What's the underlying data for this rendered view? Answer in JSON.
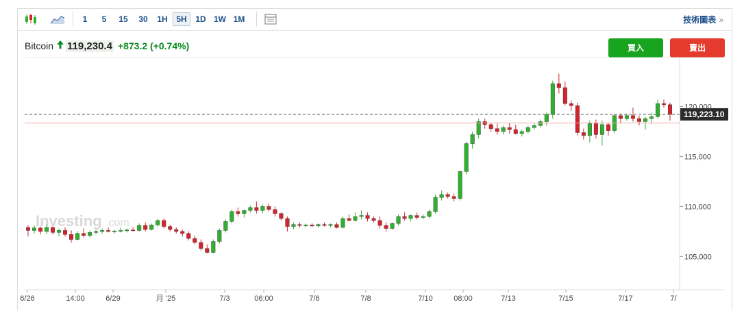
{
  "toolbar": {
    "timeframes": [
      "1",
      "5",
      "15",
      "30",
      "1H",
      "5H",
      "1D",
      "1W",
      "1M"
    ],
    "active_timeframe": "5H",
    "chart_type_icons": [
      "candlestick-chart-icon",
      "area-chart-icon"
    ],
    "table_icon": "table-icon",
    "tech_chart_label": "技術圖表",
    "tech_chart_arrow": "»"
  },
  "quote": {
    "name": "Bitcoin",
    "direction_icon": "up-arrow-icon",
    "price": "119,230.4",
    "change": "+873.2",
    "change_pct": "(+0.74%)",
    "up_color": "#0a8a1f"
  },
  "actions": {
    "buy_label": "買入",
    "sell_label": "賣出",
    "buy_color": "#19a41f",
    "sell_color": "#e53a2e"
  },
  "watermark": {
    "brand": "Investing",
    "suffix": ".com"
  },
  "chart_data": {
    "type": "candlestick",
    "ylim": [
      101800,
      124500
    ],
    "yticks": [
      {
        "value": 105000,
        "label": "105,000"
      },
      {
        "value": 110000,
        "label": "110,000"
      },
      {
        "value": 115000,
        "label": "115,000"
      },
      {
        "value": 120000,
        "label": "120,000"
      }
    ],
    "xticks": [
      "6/26",
      "14:00",
      "6/29",
      "月 '25",
      "7/3",
      "06:00",
      "7/6",
      "7/8",
      "7/10",
      "08:00",
      "7/13",
      "7/15",
      "7/17",
      "7/"
    ],
    "current_price": 119223.1,
    "current_price_label": "119,223.10",
    "reference_level": 118350,
    "grid": false,
    "up_color": "#2fb12f",
    "down_color": "#d6232b",
    "ohlc": [
      [
        107900,
        108100,
        107000,
        107600
      ],
      [
        107600,
        108100,
        107300,
        107850
      ],
      [
        107850,
        108000,
        107200,
        107500
      ],
      [
        107500,
        108200,
        107200,
        107900
      ],
      [
        107900,
        108000,
        107200,
        107400
      ],
      [
        107400,
        107800,
        107000,
        107600
      ],
      [
        107600,
        107900,
        107000,
        107200
      ],
      [
        107200,
        107600,
        106400,
        106700
      ],
      [
        106700,
        107500,
        106600,
        107300
      ],
      [
        107300,
        107800,
        106900,
        107100
      ],
      [
        107100,
        107600,
        106900,
        107400
      ],
      [
        107400,
        107700,
        107200,
        107500
      ],
      [
        107500,
        107800,
        107300,
        107600
      ],
      [
        107600,
        107900,
        107400,
        107500
      ],
      [
        107500,
        107700,
        107300,
        107550
      ],
      [
        107550,
        107900,
        107400,
        107600
      ],
      [
        107600,
        107800,
        107400,
        107650
      ],
      [
        107650,
        107900,
        107500,
        107600
      ],
      [
        107600,
        108300,
        107500,
        108100
      ],
      [
        108100,
        108400,
        107500,
        107700
      ],
      [
        107700,
        108300,
        107600,
        108150
      ],
      [
        108150,
        108800,
        108000,
        108600
      ],
      [
        108600,
        108800,
        107800,
        108000
      ],
      [
        108000,
        108200,
        107500,
        107700
      ],
      [
        107700,
        107900,
        107300,
        107500
      ],
      [
        107500,
        107700,
        107000,
        107300
      ],
      [
        107300,
        107500,
        106600,
        106800
      ],
      [
        106800,
        107100,
        106200,
        106400
      ],
      [
        106400,
        106700,
        105600,
        105800
      ],
      [
        105800,
        106200,
        105300,
        105400
      ],
      [
        105400,
        106700,
        105300,
        106500
      ],
      [
        106500,
        107800,
        106300,
        107600
      ],
      [
        107600,
        108700,
        107400,
        108500
      ],
      [
        108500,
        109700,
        108300,
        109500
      ],
      [
        109500,
        109900,
        109000,
        109300
      ],
      [
        109300,
        109700,
        108900,
        109600
      ],
      [
        109600,
        110100,
        109400,
        109900
      ],
      [
        109900,
        110500,
        109300,
        109600
      ],
      [
        109600,
        110200,
        109300,
        110000
      ],
      [
        110000,
        110300,
        109500,
        109700
      ],
      [
        109700,
        110000,
        109000,
        109300
      ],
      [
        109300,
        109400,
        108600,
        108800
      ],
      [
        108800,
        109000,
        107500,
        108000
      ],
      [
        108000,
        108400,
        107700,
        108200
      ],
      [
        108200,
        108400,
        107900,
        108100
      ],
      [
        108100,
        108300,
        107900,
        108150
      ],
      [
        108150,
        108300,
        107900,
        108050
      ],
      [
        108050,
        108300,
        107900,
        108200
      ],
      [
        108200,
        108400,
        108000,
        108100
      ],
      [
        108100,
        108300,
        107900,
        108200
      ],
      [
        108200,
        108400,
        107800,
        107900
      ],
      [
        107900,
        109000,
        107800,
        108800
      ],
      [
        108800,
        109200,
        108500,
        108600
      ],
      [
        108600,
        109400,
        108500,
        109000
      ],
      [
        109000,
        109600,
        108700,
        109100
      ],
      [
        109100,
        109400,
        108500,
        108800
      ],
      [
        108800,
        109000,
        108400,
        108600
      ],
      [
        108600,
        109000,
        107800,
        108100
      ],
      [
        108100,
        108400,
        107500,
        107800
      ],
      [
        107800,
        108400,
        107700,
        108300
      ],
      [
        108300,
        109200,
        108100,
        109000
      ],
      [
        109000,
        109400,
        108600,
        108800
      ],
      [
        108800,
        109200,
        108500,
        109100
      ],
      [
        109100,
        109400,
        108700,
        108900
      ],
      [
        108900,
        109200,
        108700,
        109000
      ],
      [
        109000,
        109700,
        108800,
        109500
      ],
      [
        109500,
        111200,
        109300,
        110900
      ],
      [
        110900,
        111600,
        110600,
        111200
      ],
      [
        111200,
        111400,
        110800,
        111000
      ],
      [
        111000,
        111300,
        110500,
        110800
      ],
      [
        110800,
        113600,
        110600,
        113500
      ],
      [
        113500,
        116500,
        113200,
        116300
      ],
      [
        116300,
        117500,
        115800,
        117200
      ],
      [
        117200,
        118800,
        116800,
        118500
      ],
      [
        118500,
        118800,
        117800,
        118200
      ],
      [
        118200,
        118400,
        117500,
        117800
      ],
      [
        117800,
        118300,
        117200,
        117500
      ],
      [
        117500,
        118100,
        117200,
        117900
      ],
      [
        117900,
        118400,
        117300,
        117700
      ],
      [
        117700,
        118200,
        117200,
        117300
      ],
      [
        117300,
        117700,
        117000,
        117500
      ],
      [
        117500,
        118100,
        117300,
        117900
      ],
      [
        117900,
        118300,
        117700,
        118100
      ],
      [
        118100,
        118700,
        117900,
        118500
      ],
      [
        118500,
        119400,
        118100,
        119200
      ],
      [
        119200,
        122600,
        118800,
        122300
      ],
      [
        122300,
        123300,
        121300,
        121900
      ],
      [
        121900,
        122500,
        120100,
        120300
      ],
      [
        120300,
        120600,
        119600,
        120100
      ],
      [
        120100,
        120400,
        117100,
        117400
      ],
      [
        117400,
        117800,
        116700,
        117100
      ],
      [
        117100,
        118600,
        116400,
        118300
      ],
      [
        118300,
        118700,
        116800,
        117200
      ],
      [
        117200,
        118600,
        116100,
        118200
      ],
      [
        118200,
        118400,
        117100,
        117600
      ],
      [
        117600,
        119300,
        117300,
        119100
      ],
      [
        119100,
        119300,
        118400,
        118800
      ],
      [
        118800,
        119300,
        118600,
        119100
      ],
      [
        119100,
        119900,
        118500,
        118800
      ],
      [
        118800,
        119100,
        118100,
        118500
      ],
      [
        118500,
        119000,
        117700,
        118800
      ],
      [
        118800,
        119400,
        118300,
        119000
      ],
      [
        119000,
        120700,
        118800,
        120300
      ],
      [
        120300,
        120700,
        119900,
        120200
      ],
      [
        120200,
        120400,
        118600,
        119220
      ]
    ]
  }
}
